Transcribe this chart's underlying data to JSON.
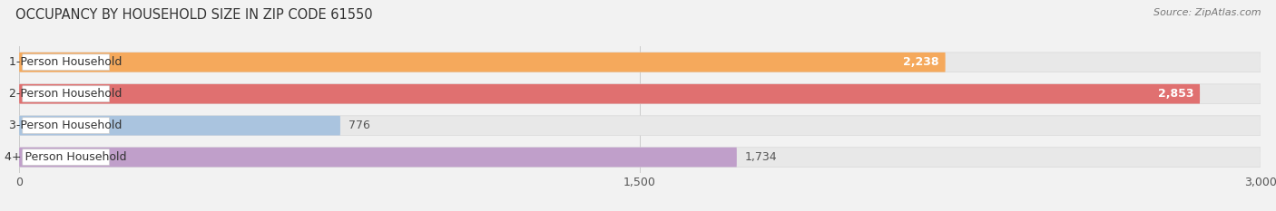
{
  "title": "OCCUPANCY BY HOUSEHOLD SIZE IN ZIP CODE 61550",
  "source": "Source: ZipAtlas.com",
  "categories": [
    "1-Person Household",
    "2-Person Household",
    "3-Person Household",
    "4+ Person Household"
  ],
  "values": [
    2238,
    2853,
    776,
    1734
  ],
  "bar_colors": [
    "#f5a95c",
    "#e07070",
    "#aac4df",
    "#c09fca"
  ],
  "xlim": [
    0,
    3000
  ],
  "xticks": [
    0,
    1500,
    3000
  ],
  "xtick_labels": [
    "0",
    "1,500",
    "3,000"
  ],
  "title_fontsize": 10.5,
  "source_fontsize": 8,
  "label_fontsize": 9,
  "value_fontsize": 9,
  "background_color": "#f2f2f2",
  "bar_bg_color": "#e8e8e8",
  "bar_height": 0.62
}
